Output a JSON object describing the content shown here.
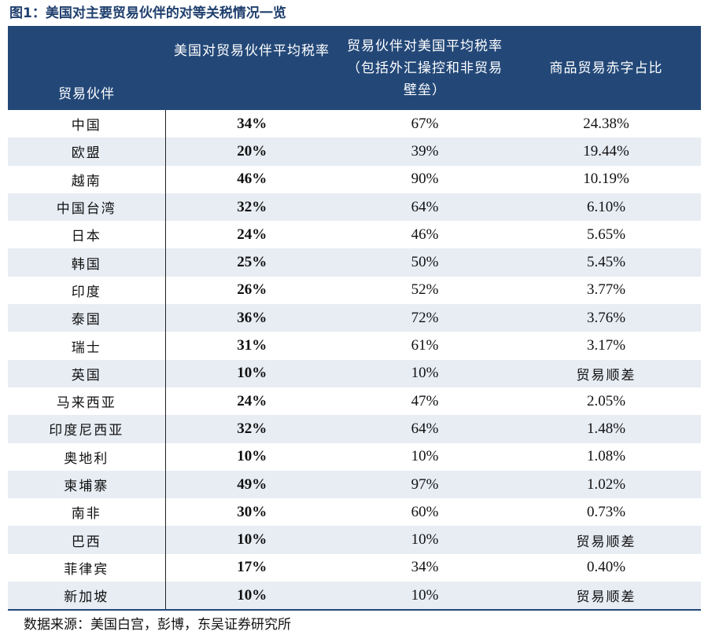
{
  "title": "图1：美国对主要贸易伙伴的对等关税情况一览",
  "headers": {
    "partner": "贸易伙伴",
    "us_rate": "美国对贸易伙伴平均税率",
    "partner_rate": "贸易伙伴对美国平均税率（包括外汇操控和非贸易壁垒）",
    "deficit_share": "商品贸易赤字占比"
  },
  "rows": [
    {
      "partner": "中国",
      "us_rate": "34%",
      "partner_rate": "67%",
      "deficit_share": "24.38%"
    },
    {
      "partner": "欧盟",
      "us_rate": "20%",
      "partner_rate": "39%",
      "deficit_share": "19.44%"
    },
    {
      "partner": "越南",
      "us_rate": "46%",
      "partner_rate": "90%",
      "deficit_share": "10.19%"
    },
    {
      "partner": "中国台湾",
      "us_rate": "32%",
      "partner_rate": "64%",
      "deficit_share": "6.10%"
    },
    {
      "partner": "日本",
      "us_rate": "24%",
      "partner_rate": "46%",
      "deficit_share": "5.65%"
    },
    {
      "partner": "韩国",
      "us_rate": "25%",
      "partner_rate": "50%",
      "deficit_share": "5.45%"
    },
    {
      "partner": "印度",
      "us_rate": "26%",
      "partner_rate": "52%",
      "deficit_share": "3.77%"
    },
    {
      "partner": "泰国",
      "us_rate": "36%",
      "partner_rate": "72%",
      "deficit_share": "3.76%"
    },
    {
      "partner": "瑞士",
      "us_rate": "31%",
      "partner_rate": "61%",
      "deficit_share": "3.17%"
    },
    {
      "partner": "英国",
      "us_rate": "10%",
      "partner_rate": "10%",
      "deficit_share": "贸易顺差"
    },
    {
      "partner": "马来西亚",
      "us_rate": "24%",
      "partner_rate": "47%",
      "deficit_share": "2.05%"
    },
    {
      "partner": "印度尼西亚",
      "us_rate": "32%",
      "partner_rate": "64%",
      "deficit_share": "1.48%"
    },
    {
      "partner": "奥地利",
      "us_rate": "10%",
      "partner_rate": "10%",
      "deficit_share": "1.08%"
    },
    {
      "partner": "柬埔寨",
      "us_rate": "49%",
      "partner_rate": "97%",
      "deficit_share": "1.02%"
    },
    {
      "partner": "南非",
      "us_rate": "30%",
      "partner_rate": "60%",
      "deficit_share": "0.73%"
    },
    {
      "partner": "巴西",
      "us_rate": "10%",
      "partner_rate": "10%",
      "deficit_share": "贸易顺差"
    },
    {
      "partner": "菲律宾",
      "us_rate": "17%",
      "partner_rate": "34%",
      "deficit_share": "0.40%"
    },
    {
      "partner": "新加坡",
      "us_rate": "10%",
      "partner_rate": "10%",
      "deficit_share": "贸易顺差"
    }
  ],
  "source": "数据来源：美国白宫，彭博，东吴证券研究所"
}
